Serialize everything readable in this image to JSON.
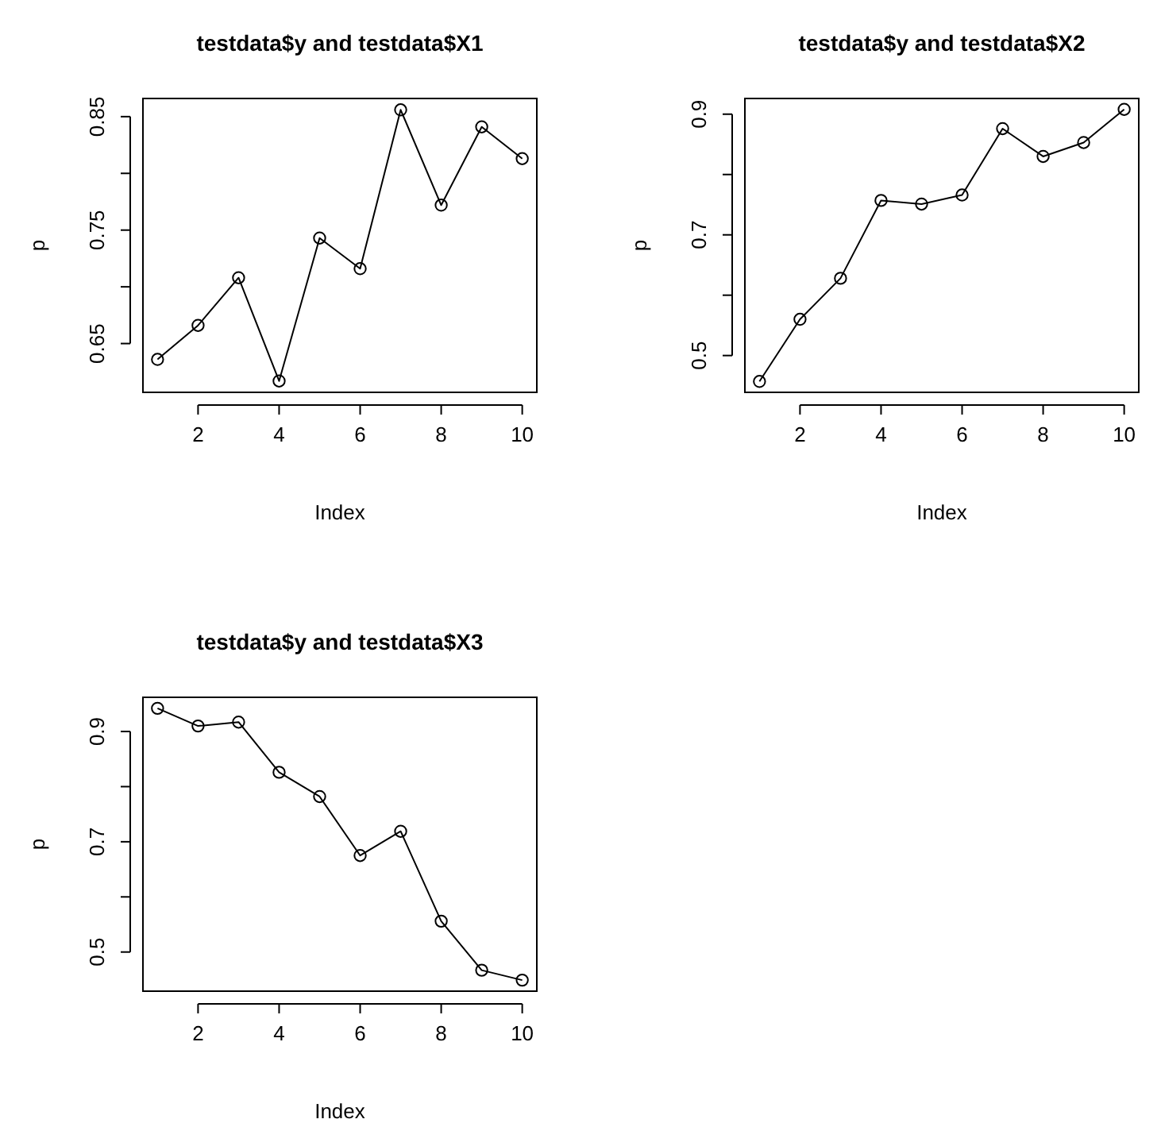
{
  "chart_data": [
    {
      "type": "line",
      "title": "testdata$y and testdata$X1",
      "xlabel": "Index",
      "ylabel": "p",
      "x": [
        1,
        2,
        3,
        4,
        5,
        6,
        7,
        8,
        9,
        10
      ],
      "series": [
        {
          "color": "#000000",
          "values": [
            0.636,
            0.666,
            0.708,
            0.617,
            0.743,
            0.716,
            0.856,
            0.772,
            0.841,
            0.813
          ]
        }
      ],
      "xlim": [
        0.64,
        10.36
      ],
      "xticks": [
        2,
        4,
        6,
        8,
        10
      ],
      "ylim": [
        0.607,
        0.866
      ],
      "yticks": [
        0.65,
        {
          "value": 0.7,
          "label": null
        },
        0.75,
        {
          "value": 0.8,
          "label": null
        },
        0.85
      ],
      "marker": "circle",
      "line_style": "solid"
    },
    {
      "type": "line",
      "title": "testdata$y and testdata$X2",
      "xlabel": "Index",
      "ylabel": "p",
      "x": [
        1,
        2,
        3,
        4,
        5,
        6,
        7,
        8,
        9,
        10
      ],
      "series": [
        {
          "color": "#000000",
          "values": [
            0.457,
            0.56,
            0.628,
            0.757,
            0.751,
            0.766,
            0.876,
            0.83,
            0.853,
            0.908
          ]
        }
      ],
      "xlim": [
        0.64,
        10.36
      ],
      "xticks": [
        2,
        4,
        6,
        8,
        10
      ],
      "ylim": [
        0.439,
        0.926
      ],
      "yticks": [
        0.5,
        {
          "value": 0.6,
          "label": null
        },
        0.7,
        {
          "value": 0.8,
          "label": null
        },
        0.9
      ],
      "marker": "circle",
      "line_style": "solid"
    },
    {
      "type": "line",
      "title": "testdata$y and testdata$X3",
      "xlabel": "Index",
      "ylabel": "p",
      "x": [
        1,
        2,
        3,
        4,
        5,
        6,
        7,
        8,
        9,
        10
      ],
      "series": [
        {
          "color": "#000000",
          "values": [
            0.942,
            0.91,
            0.917,
            0.826,
            0.782,
            0.675,
            0.719,
            0.556,
            0.467,
            0.449
          ]
        }
      ],
      "xlim": [
        0.64,
        10.36
      ],
      "xticks": [
        2,
        4,
        6,
        8,
        10
      ],
      "ylim": [
        0.429,
        0.962
      ],
      "yticks": [
        0.5,
        {
          "value": 0.6,
          "label": null
        },
        0.7,
        {
          "value": 0.8,
          "label": null
        },
        0.9
      ],
      "marker": "circle",
      "line_style": "solid"
    }
  ]
}
